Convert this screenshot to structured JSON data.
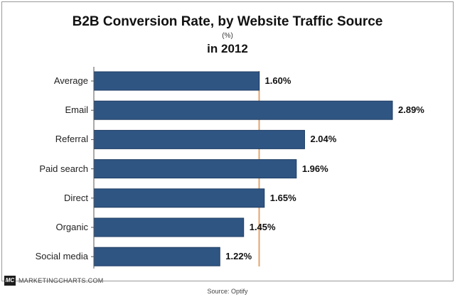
{
  "chart_data": {
    "type": "bar",
    "orientation": "horizontal",
    "title": "B2B Conversion Rate, by Website Traffic Source",
    "unit": "(%)",
    "subtitle": "in 2012",
    "categories": [
      "Average",
      "Email",
      "Referral",
      "Paid search",
      "Direct",
      "Organic",
      "Social media"
    ],
    "values": [
      1.6,
      2.89,
      2.04,
      1.96,
      1.65,
      1.45,
      1.22
    ],
    "value_labels": [
      "1.60%",
      "2.89%",
      "2.04%",
      "1.96%",
      "1.65%",
      "1.45%",
      "1.22%"
    ],
    "reference_line": 1.6,
    "xlim": [
      0,
      2.89
    ],
    "grid": false,
    "legend": "none"
  },
  "colors": {
    "bar": "#2f5583",
    "bar_edge": "#1f3d63",
    "reference_line": "#e2a46a",
    "axis": "#555555"
  },
  "footer": {
    "logo": "MC",
    "brand": "MARKETINGCHARTS.COM",
    "source": "Source: Optify"
  }
}
